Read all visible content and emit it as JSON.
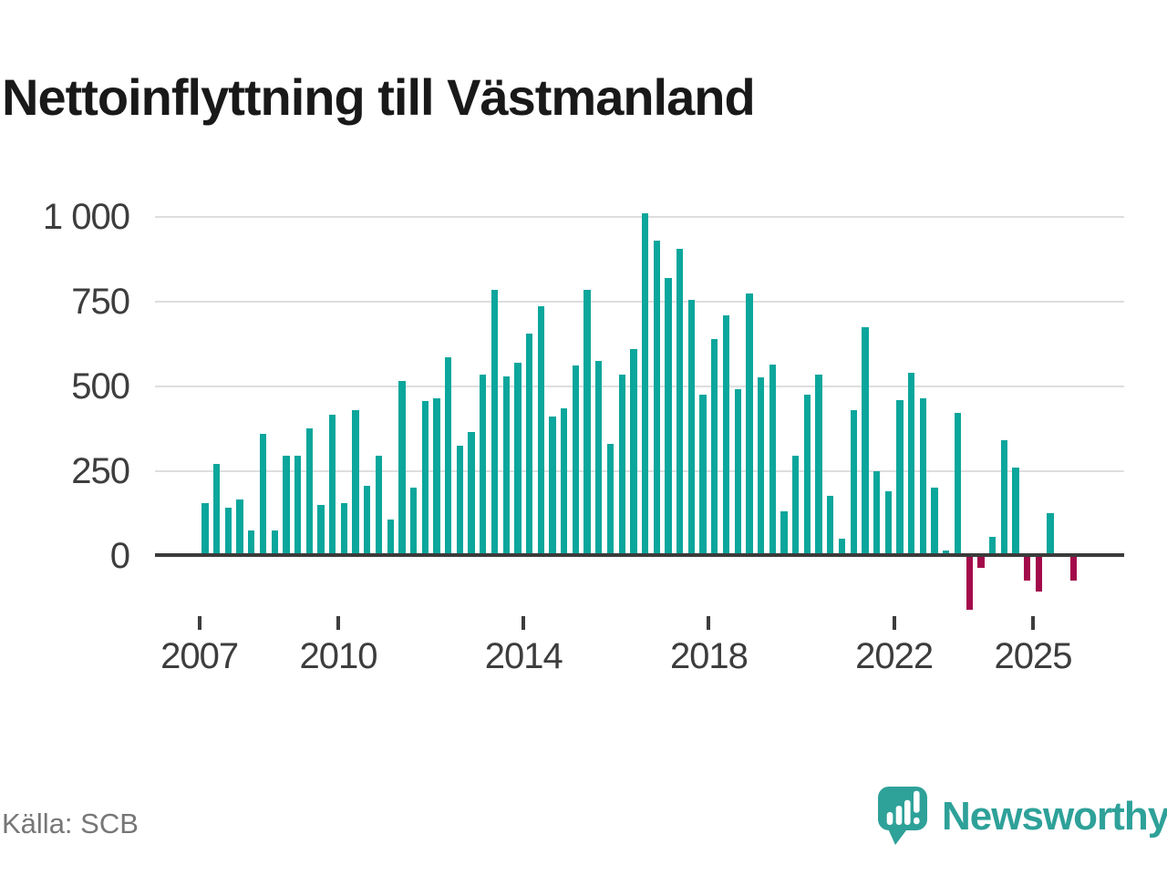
{
  "title": "Nettoinflyttning till Västmanland",
  "source": "Källa: SCB",
  "branding": {
    "name": "Newsworthy"
  },
  "colors": {
    "title_text": "#191919",
    "axis_text": "#3d3d3d",
    "gridline": "#dedede",
    "zero_axis": "#3b3b3b",
    "source_text": "#767676",
    "brand_teal": "#2ea199"
  },
  "chart_data": {
    "type": "bar",
    "title": "Nettoinflyttning till Västmanland",
    "xlabel": "",
    "ylabel": "",
    "grid": true,
    "legend_position": "none",
    "ylim": [
      -200,
      1050
    ],
    "positive_color": "#0ba69c",
    "negative_color": "#a30a4a",
    "x": [
      "2007Q1",
      "2007Q2",
      "2007Q3",
      "2007Q4",
      "2008Q1",
      "2008Q2",
      "2008Q3",
      "2008Q4",
      "2009Q1",
      "2009Q2",
      "2009Q3",
      "2009Q4",
      "2010Q1",
      "2010Q2",
      "2010Q3",
      "2010Q4",
      "2011Q1",
      "2011Q2",
      "2011Q3",
      "2011Q4",
      "2012Q1",
      "2012Q2",
      "2012Q3",
      "2012Q4",
      "2013Q1",
      "2013Q2",
      "2013Q3",
      "2013Q4",
      "2014Q1",
      "2014Q2",
      "2014Q3",
      "2014Q4",
      "2015Q1",
      "2015Q2",
      "2015Q3",
      "2015Q4",
      "2016Q1",
      "2016Q2",
      "2016Q3",
      "2016Q4",
      "2017Q1",
      "2017Q2",
      "2017Q3",
      "2017Q4",
      "2018Q1",
      "2018Q2",
      "2018Q3",
      "2018Q4",
      "2019Q1",
      "2019Q2",
      "2019Q3",
      "2019Q4",
      "2020Q1",
      "2020Q2",
      "2020Q3",
      "2020Q4",
      "2021Q1",
      "2021Q2",
      "2021Q3",
      "2021Q4",
      "2022Q1",
      "2022Q2",
      "2022Q3",
      "2022Q4",
      "2023Q1",
      "2023Q2",
      "2023Q3",
      "2023Q4",
      "2024Q1",
      "2024Q2",
      "2024Q3",
      "2024Q4",
      "2025Q1",
      "2025Q2",
      "2025Q3",
      "2025Q4"
    ],
    "values": [
      155,
      270,
      140,
      165,
      75,
      360,
      75,
      295,
      295,
      375,
      150,
      415,
      155,
      430,
      205,
      295,
      105,
      515,
      200,
      455,
      465,
      585,
      325,
      365,
      535,
      785,
      530,
      570,
      655,
      735,
      410,
      435,
      560,
      785,
      575,
      330,
      535,
      610,
      1010,
      930,
      820,
      905,
      755,
      475,
      640,
      710,
      490,
      775,
      525,
      565,
      130,
      295,
      475,
      535,
      175,
      50,
      430,
      675,
      250,
      190,
      460,
      540,
      465,
      200,
      15,
      420,
      -160,
      -35,
      55,
      340,
      260,
      -75,
      -105,
      125,
      0,
      -75
    ],
    "y_ticks": [
      {
        "label": "1 000",
        "value": 1000
      },
      {
        "label": "750",
        "value": 750
      },
      {
        "label": "500",
        "value": 500
      },
      {
        "label": "250",
        "value": 250
      },
      {
        "label": "0",
        "value": 0
      }
    ],
    "x_ticks": [
      {
        "label": "2007",
        "quarter_index": 0
      },
      {
        "label": "2010",
        "quarter_index": 12
      },
      {
        "label": "2014",
        "quarter_index": 28
      },
      {
        "label": "2018",
        "quarter_index": 44
      },
      {
        "label": "2022",
        "quarter_index": 60
      },
      {
        "label": "2025",
        "quarter_index": 72
      }
    ]
  }
}
